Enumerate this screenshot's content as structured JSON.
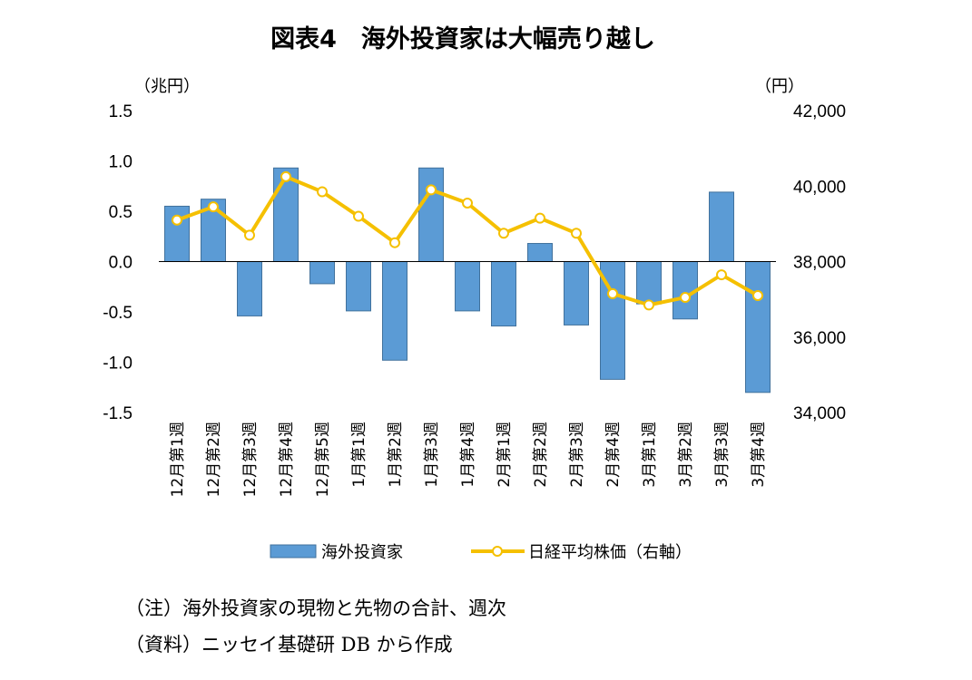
{
  "chart_data": {
    "type": "bar+line",
    "title": "図表4　海外投資家は大幅売り越し",
    "y_left": {
      "unit_label": "（兆円）",
      "ticks": [
        "1.5",
        "1.0",
        "0.5",
        "0.0",
        "-0.5",
        "-1.0",
        "-1.5"
      ],
      "ylim": [
        -1.5,
        1.5
      ],
      "tick_values": [
        1.5,
        1.0,
        0.5,
        0.0,
        -0.5,
        -1.0,
        -1.5
      ]
    },
    "y_right": {
      "unit_label": "（円）",
      "ticks": [
        "42,000",
        "40,000",
        "38,000",
        "36,000",
        "34,000"
      ],
      "ylim": [
        34000,
        42000
      ],
      "tick_values": [
        42000,
        40000,
        38000,
        36000,
        34000
      ]
    },
    "categories": [
      "12月第1週",
      "12月第2週",
      "12月第3週",
      "12月第4週",
      "12月第5週",
      "1月第1週",
      "1月第2週",
      "1月第3週",
      "1月第4週",
      "2月第1週",
      "2月第2週",
      "2月第3週",
      "2月第4週",
      "3月第1週",
      "3月第2週",
      "3月第3週",
      "3月第4週"
    ],
    "series": [
      {
        "name": "海外投資家",
        "type": "bar",
        "axis": "left",
        "color": "#5b9bd5",
        "values": [
          0.55,
          0.62,
          -0.54,
          0.93,
          -0.22,
          -0.49,
          -0.98,
          0.93,
          -0.49,
          -0.64,
          0.18,
          -0.63,
          -1.17,
          -0.42,
          -0.57,
          0.69,
          -1.3
        ]
      },
      {
        "name": "日経平均株価（右軸）",
        "type": "line",
        "axis": "right",
        "color": "#f5c000",
        "values": [
          39100,
          39450,
          38700,
          40250,
          39850,
          39200,
          38500,
          39900,
          39550,
          38750,
          39150,
          38750,
          37150,
          36850,
          37050,
          37650,
          37100
        ]
      }
    ],
    "legend": {
      "placement": "bottom"
    }
  },
  "notes": [
    "（注）海外投資家の現物と先物の合計、週次",
    "（資料）ニッセイ基礎研 DB から作成"
  ],
  "colors": {
    "bar_fill": "#5b9bd5",
    "bar_stroke": "#41719c",
    "line": "#f5c000",
    "marker_fill": "#ffffff",
    "axis": "#000000"
  }
}
